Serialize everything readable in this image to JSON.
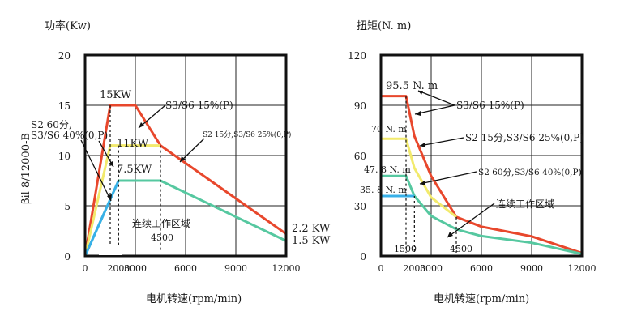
{
  "colors": {
    "s3_15": "#e8472c",
    "s2_15": "#f2ea6c",
    "s2_60": "#56c8a0",
    "s1": "#38b0e8",
    "axis": "#111111",
    "grid": "#222222"
  },
  "side_label": "βil 8/12000-B",
  "chart_data": [
    {
      "type": "line",
      "title": "功率(Kw)",
      "xlabel": "电机转速(rpm/min)",
      "ylabel": "功率(Kw)",
      "xlim": [
        0,
        12000
      ],
      "ylim": [
        0,
        20
      ],
      "xticks": [
        0,
        2000,
        3000,
        6000,
        9000,
        12000
      ],
      "xtick_labels": [
        "0",
        "2000",
        "3000",
        "6000",
        "9000",
        "12000"
      ],
      "yticks": [
        0,
        5,
        10,
        15,
        20
      ],
      "ytick_labels": [
        "0",
        "5",
        "10",
        "15",
        "20"
      ],
      "series": [
        {
          "name": "S3/S6 15%(P)",
          "color_key": "s3_15",
          "x": [
            0,
            1500,
            3000,
            4500,
            12000
          ],
          "y": [
            0,
            15,
            15,
            11,
            2.2
          ]
        },
        {
          "name": "S2 15分,S3/S6 25%(0,P)",
          "color_key": "s2_15",
          "x": [
            0,
            1500,
            4500
          ],
          "y": [
            0,
            11,
            11
          ]
        },
        {
          "name": "S2 60分,S3/S6 40%(0,P)",
          "color_key": "s2_60",
          "x": [
            0,
            2000,
            4500,
            12000
          ],
          "y": [
            0,
            7.5,
            7.5,
            1.5
          ]
        },
        {
          "name": "连续工作区域",
          "color_key": "s1",
          "x": [
            0,
            2000
          ],
          "y": [
            0,
            7.5
          ]
        }
      ],
      "value_labels": [
        "15KW",
        "11KW",
        "7.5KW",
        "2.2 KW",
        "1.5 KW"
      ],
      "annotations": {
        "s3_15": "S3/S6 15%(P)",
        "s2_15": "S2  15分,S3/S6 25%(0,P)",
        "s2_60_line1": "S2  60分,",
        "s2_60_line2": "S3/S6  40%(0,P)",
        "continuous": "连续工作区域",
        "marker_4500": "4500"
      }
    },
    {
      "type": "line",
      "title": "扭矩(N. m)",
      "xlabel": "电机转速(rpm/min)",
      "ylabel": "扭矩(N. m)",
      "xlim": [
        0,
        12000
      ],
      "ylim": [
        0,
        120
      ],
      "xticks": [
        0,
        2000,
        3000,
        6000,
        9000,
        12000
      ],
      "xtick_labels": [
        "0",
        "2000",
        "3000",
        "6000",
        "9000",
        "12000"
      ],
      "yticks": [
        0,
        30,
        60,
        90,
        120
      ],
      "ytick_labels": [
        "0",
        "30",
        "60",
        "90",
        "120"
      ],
      "series": [
        {
          "name": "S3/S6 15%(P)",
          "color_key": "s3_15",
          "x": [
            0,
            1500,
            2000,
            3000,
            4500,
            6000,
            9000,
            12000
          ],
          "y": [
            95.5,
            95.5,
            71.6,
            47.7,
            23.3,
            17.5,
            11.7,
            1.75
          ]
        },
        {
          "name": "S2 15分,S3/S6 25%(0,P)",
          "color_key": "s2_15",
          "x": [
            0,
            1500,
            2000,
            3000,
            4500
          ],
          "y": [
            70,
            70,
            52.5,
            35,
            23.3
          ]
        },
        {
          "name": "S2 60分,S3/S6 40%(0,P)",
          "color_key": "s2_60",
          "x": [
            0,
            1500,
            2000,
            3000,
            4500,
            6000,
            9000,
            12000
          ],
          "y": [
            47.8,
            47.8,
            35.8,
            23.9,
            15.9,
            11.9,
            7.9,
            1.19
          ]
        },
        {
          "name": "连续工作区域",
          "color_key": "s1",
          "x": [
            0,
            2000
          ],
          "y": [
            35.8,
            35.8
          ]
        }
      ],
      "value_labels": [
        "95.5 N. m",
        "70 N. m",
        "47. 8 N. m",
        "35. 8 N. m"
      ],
      "annotations": {
        "s3_15": "S3/S6 15%(P)",
        "s2_15": "S2 15分,S3/S6 25%(0,P)",
        "s2_60": "S2 60分,S3/S6 40%(0,P)",
        "continuous": "连续工作区域",
        "marker_1500": "1500",
        "marker_4500": "4500"
      }
    }
  ]
}
